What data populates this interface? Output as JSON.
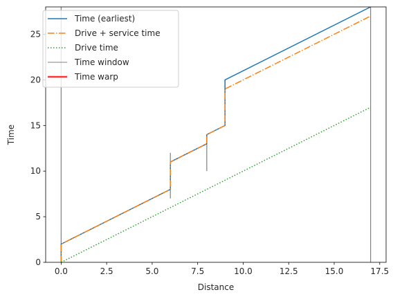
{
  "chart_data": {
    "type": "line",
    "xlabel": "Distance",
    "ylabel": "Time",
    "xlim": [
      -0.85,
      17.85
    ],
    "ylim": [
      0,
      28
    ],
    "x_ticks": [
      0,
      2.5,
      5,
      7.5,
      10,
      12.5,
      15,
      17.5
    ],
    "x_tick_labels": [
      "0.0",
      "2.5",
      "5.0",
      "7.5",
      "10.0",
      "12.5",
      "15.0",
      "17.5"
    ],
    "y_ticks": [
      0,
      5,
      10,
      15,
      20,
      25
    ],
    "y_tick_labels": [
      "0",
      "5",
      "10",
      "15",
      "20",
      "25"
    ],
    "legend_position": "top-left",
    "series": [
      {
        "name": "Time (earliest)",
        "color": "#1f77b4",
        "style": "solid",
        "points": [
          [
            0,
            0
          ],
          [
            0,
            2
          ],
          [
            6,
            8
          ],
          [
            6,
            11
          ],
          [
            8,
            13
          ],
          [
            8,
            14
          ],
          [
            9,
            15
          ],
          [
            9,
            20
          ],
          [
            17,
            28
          ]
        ]
      },
      {
        "name": "Drive + service time",
        "color": "#ff7f0e",
        "style": "dashdot",
        "points": [
          [
            0,
            0
          ],
          [
            0,
            2
          ],
          [
            6,
            8
          ],
          [
            6,
            11
          ],
          [
            8,
            13
          ],
          [
            8,
            14
          ],
          [
            9,
            15
          ],
          [
            9,
            19
          ],
          [
            17,
            27
          ]
        ]
      },
      {
        "name": "Drive time",
        "color": "#2ca02c",
        "style": "dotted",
        "points": [
          [
            0,
            0
          ],
          [
            17,
            17
          ]
        ]
      }
    ],
    "time_windows": {
      "name": "Time window",
      "color": "#808080",
      "windows": [
        {
          "x": 0,
          "y_min": 0,
          "y_max": 28
        },
        {
          "x": 6,
          "y_min": 7,
          "y_max": 12
        },
        {
          "x": 8,
          "y_min": 10,
          "y_max": 14
        },
        {
          "x": 9,
          "y_min": 15,
          "y_max": 20
        },
        {
          "x": 17,
          "y_min": 0,
          "y_max": 28
        }
      ]
    },
    "time_warp": {
      "name": "Time warp",
      "color": "#ff3333",
      "segments": []
    }
  }
}
